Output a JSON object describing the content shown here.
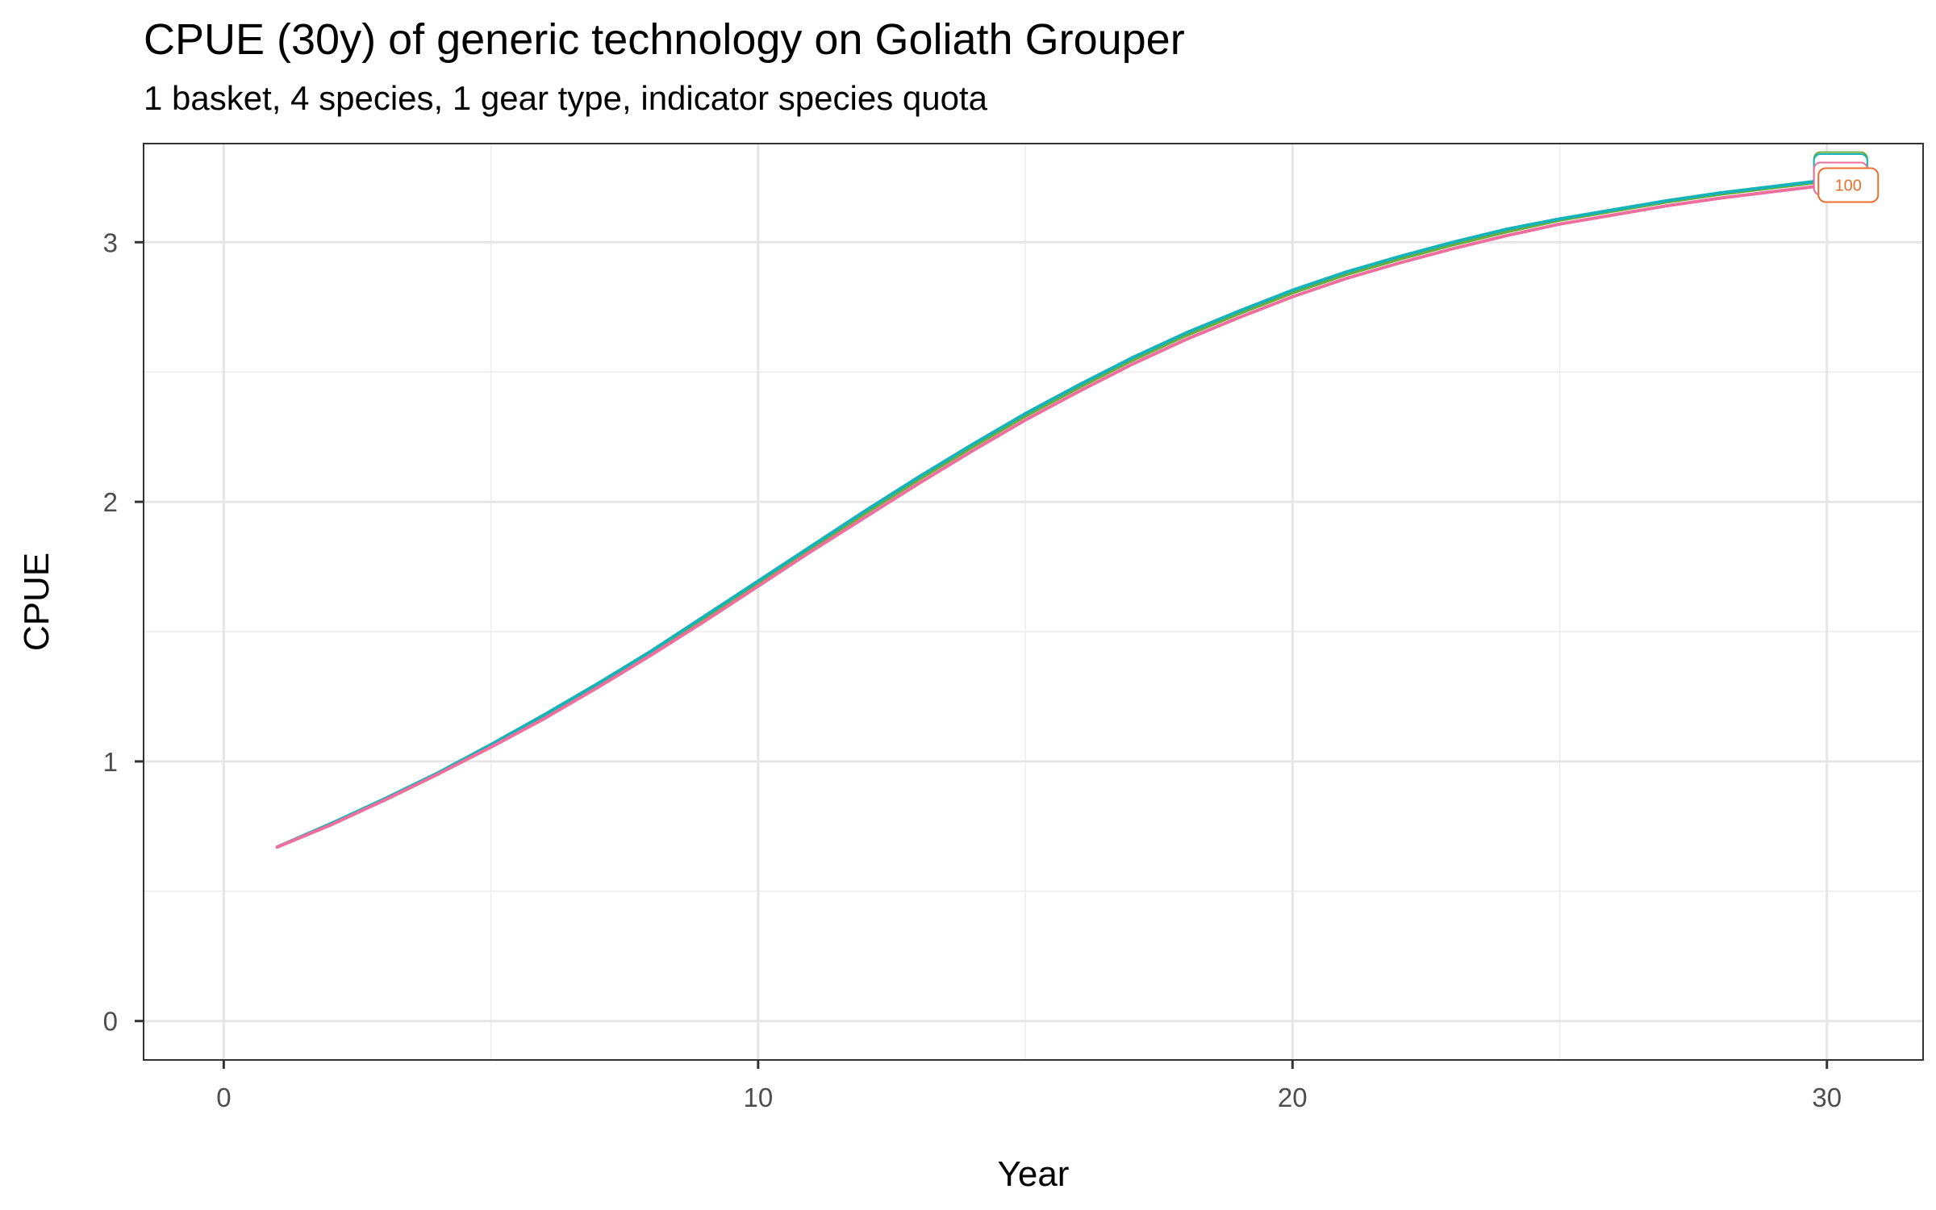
{
  "chart_data": {
    "type": "line",
    "title": "CPUE (30y) of generic technology on Goliath Grouper",
    "subtitle": "1 basket, 4 species, 1 gear type, indicator species quota",
    "xlabel": "Year",
    "ylabel": "CPUE",
    "xlim": [
      -1.5,
      31.8
    ],
    "ylim": [
      -0.15,
      3.38
    ],
    "x_ticks": [
      0,
      10,
      20,
      30
    ],
    "y_ticks": [
      0,
      1,
      2,
      3
    ],
    "grid": true,
    "legend": "none",
    "x": [
      1,
      2,
      3,
      4,
      5,
      6,
      7,
      8,
      9,
      10,
      11,
      12,
      13,
      14,
      15,
      16,
      17,
      18,
      19,
      20,
      21,
      22,
      23,
      24,
      25,
      26,
      27,
      28,
      29,
      30
    ],
    "series": [
      {
        "color": "#6bae3c",
        "values": [
          0.67,
          0.76,
          0.85,
          0.95,
          1.06,
          1.17,
          1.29,
          1.42,
          1.55,
          1.685,
          1.82,
          1.955,
          2.085,
          2.21,
          2.33,
          2.44,
          2.545,
          2.64,
          2.725,
          2.805,
          2.875,
          2.935,
          2.99,
          3.04,
          3.085,
          3.12,
          3.155,
          3.185,
          3.21,
          3.235
        ]
      },
      {
        "color": "#16b3b8",
        "values": [
          0.67,
          0.76,
          0.855,
          0.955,
          1.065,
          1.18,
          1.3,
          1.425,
          1.56,
          1.695,
          1.83,
          1.965,
          2.095,
          2.22,
          2.34,
          2.45,
          2.555,
          2.65,
          2.735,
          2.815,
          2.885,
          2.945,
          3.0,
          3.05,
          3.09,
          3.125,
          3.16,
          3.19,
          3.215,
          3.24
        ]
      },
      {
        "color": "#ee6e9d",
        "values": [
          0.67,
          0.755,
          0.85,
          0.95,
          1.055,
          1.165,
          1.285,
          1.41,
          1.54,
          1.675,
          1.81,
          1.94,
          2.07,
          2.195,
          2.315,
          2.425,
          2.53,
          2.625,
          2.71,
          2.79,
          2.86,
          2.92,
          2.975,
          3.025,
          3.07,
          3.105,
          3.14,
          3.17,
          3.195,
          3.22
        ]
      }
    ],
    "end_labels": [
      {
        "text": "100",
        "color": "#e86f2f",
        "x": 30.4,
        "y": 3.22
      }
    ]
  }
}
